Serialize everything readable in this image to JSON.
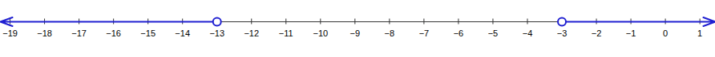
{
  "chart_data": {
    "type": "number_line",
    "xlim": [
      -19.28,
      1.45
    ],
    "xticks": [
      -19,
      -18,
      -17,
      -16,
      -15,
      -14,
      -13,
      -12,
      -11,
      -10,
      -9,
      -8,
      -7,
      -6,
      -5,
      -4,
      -3,
      -2,
      -1,
      0,
      1
    ],
    "color": "#1f1fd1",
    "rays": [
      {
        "endpoint": -13,
        "direction": "left",
        "marker": "open_circle"
      },
      {
        "endpoint": -3,
        "direction": "right",
        "marker": "open_circle"
      }
    ]
  }
}
